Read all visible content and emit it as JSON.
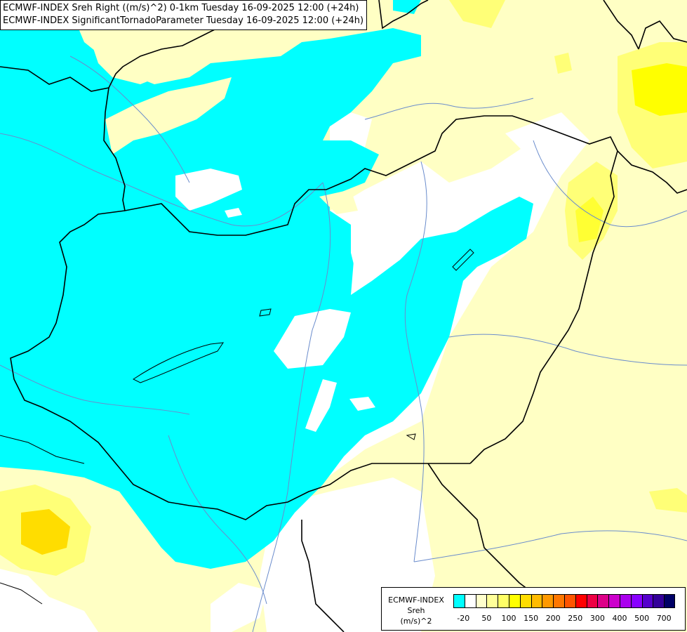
{
  "header": {
    "line1": "ECMWF-INDEX Sreh Right ((m/s)^2) 0-1km Tuesday 16-09-2025 12:00 (+24h)",
    "line2": "ECMWF-INDEX SignificantTornadoParameter Tuesday 16-09-2025 12:00 (+24h)"
  },
  "legend": {
    "line1": "ECMWF-INDEX",
    "line2": "Sreh",
    "line3": "(m/s)^2",
    "colors": [
      "#00ffff",
      "#ffffff",
      "#ffffcc",
      "#ffff99",
      "#ffff66",
      "#ffff00",
      "#ffdd00",
      "#ffbb00",
      "#ff9900",
      "#ff7700",
      "#ff5500",
      "#ff0000",
      "#ee0044",
      "#dd0088",
      "#cc00cc",
      "#aa00ee",
      "#8800ff",
      "#5500cc",
      "#330099",
      "#000066"
    ],
    "labels": [
      "-20",
      "50",
      "100",
      "150",
      "200",
      "250",
      "300",
      "400",
      "500",
      "700"
    ]
  },
  "map": {
    "field_colors": {
      "low": "#00ffff",
      "neutral": "#ffffff",
      "weak": "#ffffc4",
      "moderate": "#ffff77",
      "strong": "#ffff00",
      "core": "#ffdd00",
      "max": "#e6e600"
    },
    "border_color": "#000000",
    "river_color": "#6a8ccc"
  }
}
